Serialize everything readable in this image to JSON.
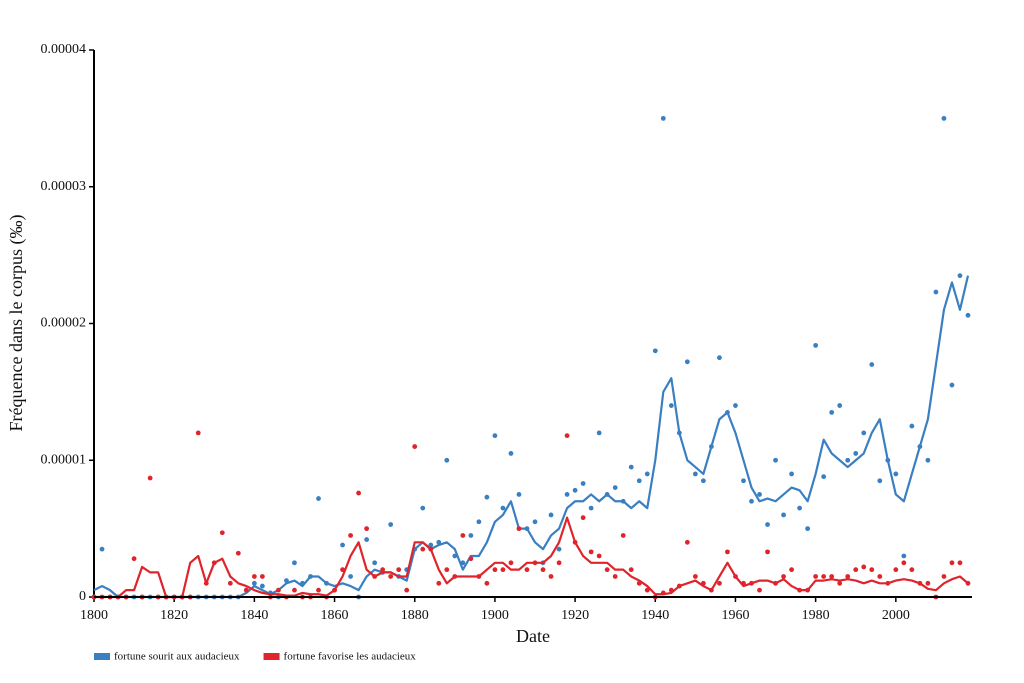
{
  "chart_data": {
    "type": "line",
    "x_label": "Date",
    "y_label": "Fréquence dans le corpus (‰)",
    "x": [
      1800,
      1802,
      1804,
      1806,
      1808,
      1810,
      1812,
      1814,
      1816,
      1818,
      1820,
      1822,
      1824,
      1826,
      1828,
      1830,
      1832,
      1834,
      1836,
      1838,
      1840,
      1842,
      1844,
      1846,
      1848,
      1850,
      1852,
      1854,
      1856,
      1858,
      1860,
      1862,
      1864,
      1866,
      1868,
      1870,
      1872,
      1874,
      1876,
      1878,
      1880,
      1882,
      1884,
      1886,
      1888,
      1890,
      1892,
      1894,
      1896,
      1898,
      1900,
      1902,
      1904,
      1906,
      1908,
      1910,
      1912,
      1914,
      1916,
      1918,
      1920,
      1922,
      1924,
      1926,
      1928,
      1930,
      1932,
      1934,
      1936,
      1938,
      1940,
      1942,
      1944,
      1946,
      1948,
      1950,
      1952,
      1954,
      1956,
      1958,
      1960,
      1962,
      1964,
      1966,
      1968,
      1970,
      1972,
      1974,
      1976,
      1978,
      1980,
      1982,
      1984,
      1986,
      1988,
      1990,
      1992,
      1994,
      1996,
      1998,
      2000,
      2002,
      2004,
      2006,
      2008,
      2010,
      2012,
      2014,
      2016,
      2018
    ],
    "xlim": [
      1800,
      2019
    ],
    "xticks": [
      1800,
      1820,
      1840,
      1860,
      1880,
      1900,
      1920,
      1940,
      1960,
      1980,
      2000
    ],
    "ylim": [
      0,
      4e-05
    ],
    "yticks": [
      0,
      1e-05,
      2e-05,
      3e-05,
      4e-05
    ],
    "series": [
      {
        "name": "fortune sourit aux audacieux",
        "color": "#3a7fc1",
        "values": [
          0,
          3.5e-06,
          0,
          0,
          0,
          0,
          0,
          0,
          0,
          0,
          0,
          0,
          0,
          0,
          0,
          0,
          0,
          0,
          0,
          5e-07,
          1e-06,
          8e-07,
          3e-07,
          0,
          1.2e-06,
          2.5e-06,
          1e-06,
          1.5e-06,
          7.2e-06,
          1e-06,
          5e-07,
          3.8e-06,
          1.5e-06,
          0,
          4.2e-06,
          2.5e-06,
          1.8e-06,
          5.3e-06,
          1.5e-06,
          2e-06,
          3.5e-06,
          6.5e-06,
          3.8e-06,
          4e-06,
          1e-05,
          3e-06,
          2.5e-06,
          4.5e-06,
          5.5e-06,
          7.3e-06,
          1.18e-05,
          6.5e-06,
          1.05e-05,
          7.5e-06,
          5e-06,
          5.5e-06,
          2.5e-06,
          6e-06,
          3.5e-06,
          7.5e-06,
          7.8e-06,
          8.3e-06,
          6.5e-06,
          1.2e-05,
          7.5e-06,
          8e-06,
          7e-06,
          9.5e-06,
          8.5e-06,
          9e-06,
          1.8e-05,
          3.5e-05,
          1.4e-05,
          1.2e-05,
          1.72e-05,
          9e-06,
          8.5e-06,
          1.1e-05,
          1.75e-05,
          1.35e-05,
          1.4e-05,
          8.5e-06,
          7e-06,
          7.5e-06,
          5.3e-06,
          1e-05,
          6e-06,
          9e-06,
          6.5e-06,
          5e-06,
          1.84e-05,
          8.8e-06,
          1.35e-05,
          1.4e-05,
          1e-05,
          1.05e-05,
          1.2e-05,
          1.7e-05,
          8.5e-06,
          1e-05,
          9e-06,
          3e-06,
          1.25e-05,
          1.1e-05,
          1e-05,
          2.23e-05,
          3.5e-05,
          1.55e-05,
          2.35e-05,
          2.06e-05
        ],
        "smoothed_values": [
          5e-07,
          8e-07,
          5e-07,
          0,
          0,
          0,
          0,
          0,
          0,
          0,
          0,
          0,
          0,
          0,
          0,
          0,
          0,
          0,
          0,
          3e-07,
          8e-07,
          5e-07,
          2e-07,
          5e-07,
          1e-06,
          1.2e-06,
          8e-07,
          1.5e-06,
          1.5e-06,
          1e-06,
          8e-07,
          1e-06,
          8e-07,
          5e-07,
          1.5e-06,
          2e-06,
          1.8e-06,
          1.8e-06,
          1.5e-06,
          1.2e-06,
          3.5e-06,
          4e-06,
          3.5e-06,
          3.8e-06,
          4e-06,
          3.5e-06,
          2e-06,
          3e-06,
          3e-06,
          4e-06,
          5.5e-06,
          6e-06,
          7e-06,
          5e-06,
          5e-06,
          4e-06,
          3.5e-06,
          4.5e-06,
          5e-06,
          6.5e-06,
          7e-06,
          7e-06,
          7.5e-06,
          7e-06,
          7.5e-06,
          7e-06,
          7e-06,
          6.5e-06,
          7e-06,
          6.5e-06,
          1e-05,
          1.5e-05,
          1.6e-05,
          1.2e-05,
          1e-05,
          9.5e-06,
          9e-06,
          1.1e-05,
          1.3e-05,
          1.35e-05,
          1.2e-05,
          1e-05,
          8e-06,
          7e-06,
          7.2e-06,
          7e-06,
          7.5e-06,
          8e-06,
          7.8e-06,
          7e-06,
          9e-06,
          1.15e-05,
          1.05e-05,
          1e-05,
          9.5e-06,
          1e-05,
          1.05e-05,
          1.2e-05,
          1.3e-05,
          1e-05,
          7.5e-06,
          7e-06,
          9e-06,
          1.1e-05,
          1.3e-05,
          1.7e-05,
          2.1e-05,
          2.3e-05,
          2.1e-05,
          2.35e-05
        ]
      },
      {
        "name": "fortune favorise les audacieux",
        "color": "#e0242b",
        "values": [
          0,
          0,
          0,
          0,
          0,
          2.8e-06,
          0,
          8.7e-06,
          0,
          0,
          0,
          0,
          0,
          1.2e-05,
          1e-06,
          2.5e-06,
          4.7e-06,
          1e-06,
          3.2e-06,
          5e-07,
          1.5e-06,
          1.5e-06,
          0,
          5e-07,
          0,
          5e-07,
          0,
          0,
          5e-07,
          0,
          5e-07,
          2e-06,
          4.5e-06,
          7.6e-06,
          5e-06,
          1.5e-06,
          2e-06,
          1.5e-06,
          2e-06,
          5e-07,
          1.1e-05,
          3.5e-06,
          3.5e-06,
          1e-06,
          2e-06,
          1.5e-06,
          4.5e-06,
          2.8e-06,
          1.5e-06,
          1e-06,
          2e-06,
          2e-06,
          2.5e-06,
          5e-06,
          2e-06,
          2.5e-06,
          2e-06,
          1.5e-06,
          2.5e-06,
          1.18e-05,
          4e-06,
          5.8e-06,
          3.3e-06,
          3e-06,
          2e-06,
          1.5e-06,
          4.5e-06,
          2e-06,
          1e-06,
          5e-07,
          0,
          3e-07,
          5e-07,
          8e-07,
          4e-06,
          1.5e-06,
          1e-06,
          5e-07,
          1e-06,
          3.3e-06,
          1.5e-06,
          1e-06,
          1e-06,
          5e-07,
          3.3e-06,
          1e-06,
          1.5e-06,
          2e-06,
          5e-07,
          5e-07,
          1.5e-06,
          1.5e-06,
          1.5e-06,
          1e-06,
          1.5e-06,
          2e-06,
          2.2e-06,
          2e-06,
          1.5e-06,
          1e-06,
          2e-06,
          2.5e-06,
          2e-06,
          1e-06,
          1e-06,
          0,
          1.5e-06,
          2.5e-06,
          2.5e-06,
          1e-06
        ],
        "smoothed_values": [
          0,
          0,
          0,
          0,
          5e-07,
          5e-07,
          2.2e-06,
          1.8e-06,
          1.8e-06,
          0,
          0,
          0,
          2.5e-06,
          3e-06,
          1e-06,
          2.5e-06,
          2.8e-06,
          1.5e-06,
          1e-06,
          8e-07,
          5e-07,
          3e-07,
          2e-07,
          2e-07,
          1e-07,
          1e-07,
          3e-07,
          2e-07,
          2e-07,
          1e-07,
          5e-07,
          1.5e-06,
          3e-06,
          4e-06,
          2e-06,
          1.5e-06,
          1.8e-06,
          1.8e-06,
          1.5e-06,
          1.5e-06,
          4e-06,
          4e-06,
          3.5e-06,
          2e-06,
          1e-06,
          1.5e-06,
          1.5e-06,
          1.5e-06,
          1.5e-06,
          2e-06,
          2.5e-06,
          2.5e-06,
          2e-06,
          2e-06,
          2.5e-06,
          2.5e-06,
          2.5e-06,
          3e-06,
          4e-06,
          5.8e-06,
          4e-06,
          3e-06,
          2.5e-06,
          2.5e-06,
          2.5e-06,
          2e-06,
          2e-06,
          1.5e-06,
          1.2e-06,
          8e-07,
          2e-07,
          2e-07,
          3e-07,
          8e-07,
          1e-06,
          1.2e-06,
          8e-07,
          5e-07,
          1.5e-06,
          2.5e-06,
          1.5e-06,
          8e-07,
          1e-06,
          1.2e-06,
          1.2e-06,
          1e-06,
          1.3e-06,
          8e-07,
          5e-07,
          5e-07,
          1.2e-06,
          1.2e-06,
          1.3e-06,
          1.2e-06,
          1.3e-06,
          1.2e-06,
          1e-06,
          1.2e-06,
          1e-06,
          1e-06,
          1.2e-06,
          1.3e-06,
          1.2e-06,
          1e-06,
          6e-07,
          5e-07,
          1e-06,
          1.3e-06,
          1.5e-06,
          1e-06
        ]
      }
    ],
    "legend": "bottom-left"
  }
}
